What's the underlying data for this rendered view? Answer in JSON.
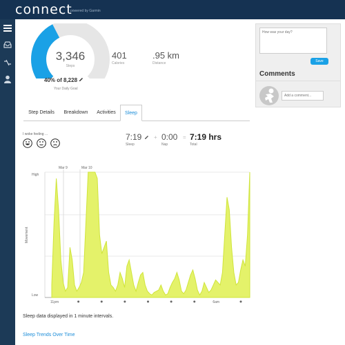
{
  "app": {
    "logo": "connect",
    "powered_by": "powered by Garmin"
  },
  "nav": {
    "icons": [
      "menu-icon",
      "inbox-icon",
      "connections-icon",
      "profile-icon"
    ]
  },
  "summary": {
    "steps_value": "3,346",
    "steps_label": "Steps",
    "goal_progress": 0.4,
    "goal_text_pct": "40% of 8,228",
    "goal_label": "Your Daily Goal",
    "calories_value": "401",
    "calories_label": "Calories",
    "distance_value": ".95 km",
    "distance_label": "Distance"
  },
  "tabs": [
    "Step Details",
    "Breakdown",
    "Activities",
    "Sleep"
  ],
  "active_tab": "Sleep",
  "feeling": {
    "label": "I woke feeling ...",
    "options": [
      "happy-face-icon",
      "neutral-face-icon",
      "sad-face-icon"
    ]
  },
  "sleep": {
    "sleep_value": "7:19",
    "sleep_label": "Sleep",
    "nap_value": "0:00",
    "nap_label": "Nap",
    "total_value": "7:19 hrs",
    "total_label": "Total",
    "plus": "+",
    "equals": "="
  },
  "chart_data": {
    "type": "area",
    "title": "",
    "ylabel": "Movement",
    "y_ticks": [
      "High",
      "Low"
    ],
    "x_ticks": [
      "11pm",
      "",
      "",
      "",
      "",
      "",
      "",
      "6am",
      ""
    ],
    "date_markers": [
      "Mar 9",
      "Mar 10"
    ],
    "ylim": [
      0,
      1
    ],
    "values": [
      0.1,
      0.6,
      0.95,
      0.7,
      0.3,
      0.12,
      0.05,
      0.08,
      0.4,
      0.3,
      0.1,
      0.05,
      0.08,
      0.12,
      0.2,
      0.6,
      1,
      1,
      1,
      1,
      0.95,
      0.5,
      0.35,
      0.4,
      0.45,
      0.2,
      0.1,
      0.08,
      0.05,
      0.1,
      0.2,
      0.15,
      0.08,
      0.25,
      0.3,
      0.2,
      0.1,
      0.05,
      0.12,
      0.18,
      0.2,
      0.1,
      0.05,
      0.03,
      0.02,
      0.04,
      0.05,
      0.06,
      0.1,
      0.05,
      0.02,
      0.03,
      0.08,
      0.12,
      0.15,
      0.2,
      0.14,
      0.05,
      0.03,
      0.06,
      0.12,
      0.18,
      0.22,
      0.15,
      0.06,
      0.02,
      0.05,
      0.12,
      0.08,
      0.04,
      0.06,
      0.1,
      0.14,
      0.12,
      0.1,
      0.2,
      0.5,
      0.8,
      0.7,
      0.4,
      0.2,
      0.1,
      0.12,
      0.22,
      0.3,
      0.25,
      0.5,
      1
    ],
    "color": "#e4f26a",
    "line_color": "#cfe43a"
  },
  "footer": {
    "interval_note": "Sleep data displayed in 1 minute intervals.",
    "trends_link": "Sleep Trends Over Time"
  },
  "panel": {
    "day_placeholder": "How was your day?",
    "save_label": "Save",
    "comments_title": "Comments",
    "comment_placeholder": "Add a comment..."
  },
  "colors": {
    "accent": "#1aa1e6",
    "gauge_track": "#e6e6e6",
    "nav_bg": "#1c3a57"
  }
}
